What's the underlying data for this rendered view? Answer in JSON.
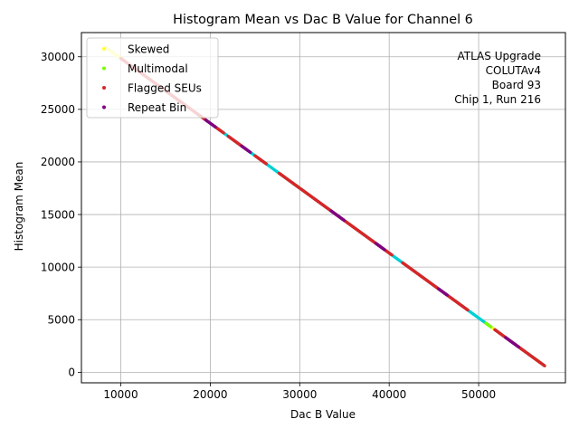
{
  "chart_data": {
    "type": "scatter",
    "title": "Histogram Mean vs Dac B Value for Channel 6",
    "xlabel": "Dac B Value",
    "ylabel": "Histogram Mean",
    "xlim": [
      5600,
      59700
    ],
    "ylim": [
      -1000,
      32300
    ],
    "xticks": [
      10000,
      20000,
      30000,
      40000,
      50000
    ],
    "yticks": [
      0,
      5000,
      10000,
      15000,
      20000,
      25000,
      30000
    ],
    "grid": true,
    "legend_position": "upper left",
    "annotation": [
      "ATLAS Upgrade",
      "COLUTAv4",
      "Board 93",
      "Chip 1, Run 216"
    ],
    "annotation_position": "upper right",
    "line": {
      "x_start": 8300,
      "y_start": 30900,
      "x_end": 57400,
      "y_end": 600
    },
    "series": [
      {
        "name": "Skewed",
        "color": "#ffff33",
        "x_ranges": [
          [
            8300,
            10000
          ],
          [
            30500,
            30900
          ],
          [
            51500,
            51700
          ]
        ]
      },
      {
        "name": "Multimodal",
        "color": "#7cfc00",
        "x_ranges": [
          [
            29300,
            29900
          ],
          [
            50800,
            51400
          ],
          [
            56200,
            57000
          ]
        ]
      },
      {
        "name": "Flagged SEUs",
        "color": "#d62728",
        "x_ranges": [
          [
            10000,
            19800
          ],
          [
            20500,
            21500
          ],
          [
            22000,
            24000
          ],
          [
            25000,
            26300
          ],
          [
            27700,
            40300
          ],
          [
            41500,
            48800
          ],
          [
            51800,
            57400
          ]
        ]
      },
      {
        "name": "Repeat Bin",
        "color": "#800080",
        "x_ranges": [
          [
            19500,
            20600
          ],
          [
            23500,
            24500
          ],
          [
            33500,
            35000
          ],
          [
            38500,
            39500
          ],
          [
            45500,
            46500
          ],
          [
            53000,
            54500
          ]
        ]
      }
    ],
    "background_series_color": "#00cfd5"
  }
}
